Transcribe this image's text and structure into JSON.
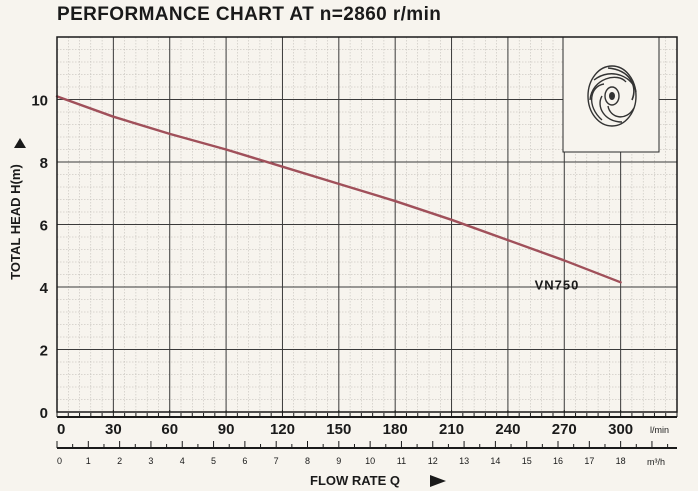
{
  "chart_data": {
    "type": "line",
    "title": "PERFORMANCE CHART AT n=2860 r/min",
    "ylabel": "TOTAL HEAD H(m)",
    "xlabel": "FLOW RATE Q",
    "x_unit": "l/min",
    "x2_unit": "m³/h",
    "ylim": [
      0,
      12
    ],
    "xlim": [
      0,
      330
    ],
    "yticks": [
      0,
      2,
      4,
      6,
      8,
      10
    ],
    "xticks": [
      0,
      30,
      60,
      90,
      120,
      150,
      180,
      210,
      240,
      270,
      300
    ],
    "x2ticks": [
      0,
      1,
      2,
      3,
      4,
      5,
      6,
      7,
      8,
      9,
      10,
      11,
      12,
      13,
      14,
      15,
      16,
      17,
      18
    ],
    "grid": true,
    "series": [
      {
        "name": "VN750",
        "color": "#a0505a",
        "x": [
          0,
          30,
          60,
          90,
          120,
          150,
          180,
          210,
          240,
          270,
          300
        ],
        "y": [
          10.1,
          9.45,
          8.9,
          8.4,
          7.85,
          7.3,
          6.75,
          6.15,
          5.5,
          4.85,
          4.15
        ]
      }
    ]
  },
  "impeller_icon": "impeller-icon"
}
